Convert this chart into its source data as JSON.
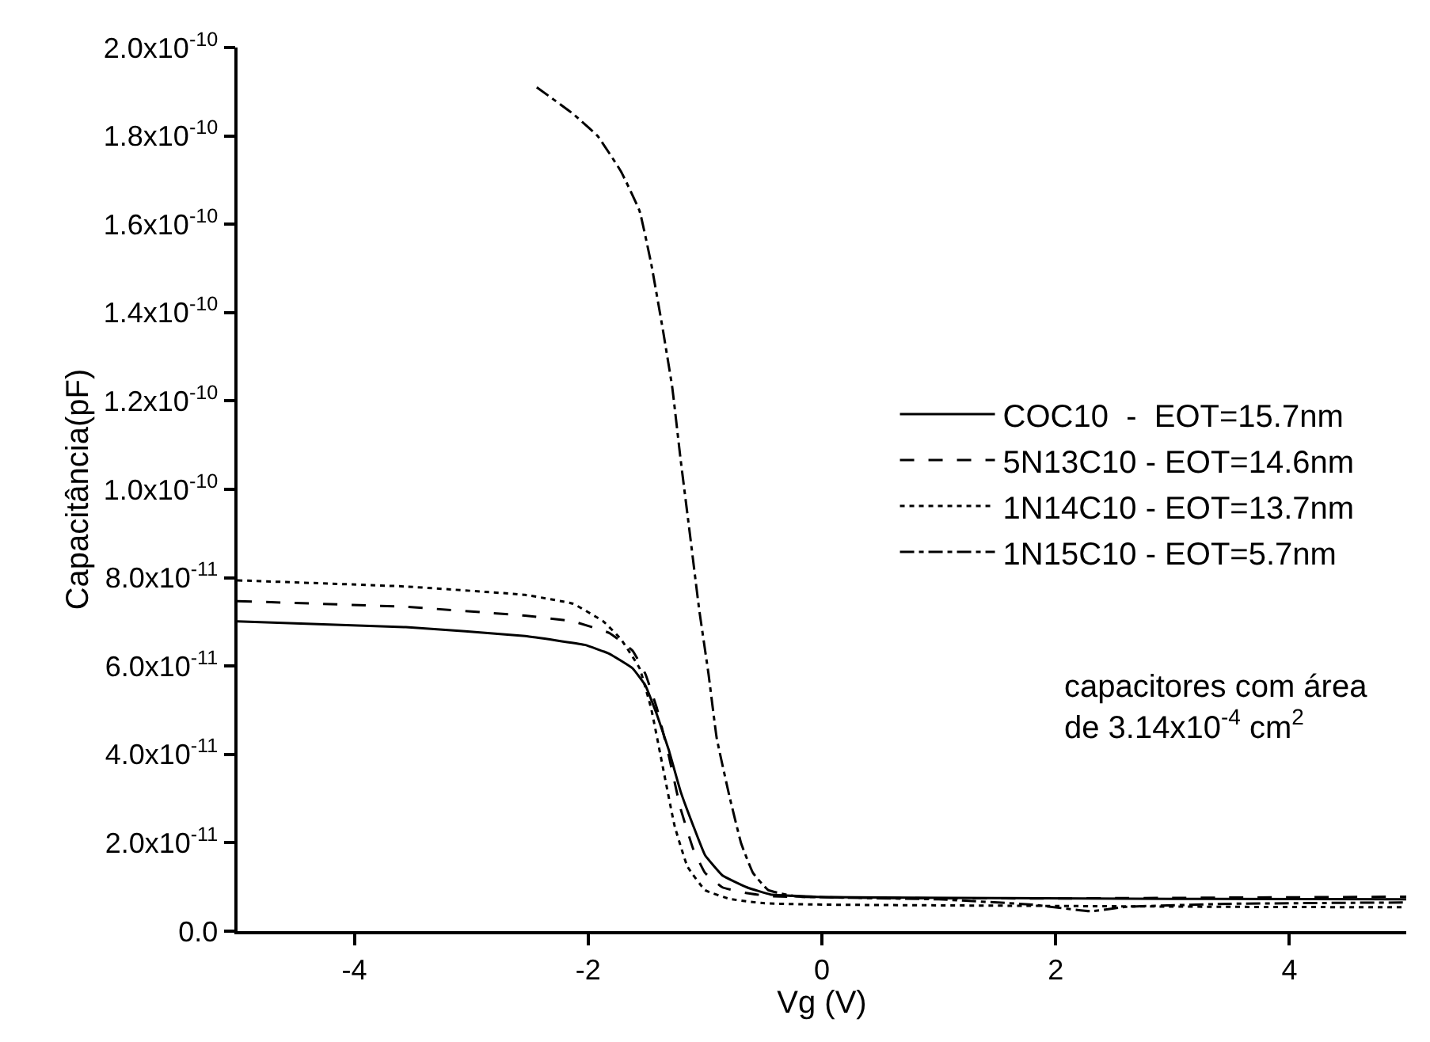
{
  "chart_data": {
    "type": "line",
    "xlabel": "Vg (V)",
    "ylabel": "Capacitância(pF)",
    "xlim": [
      -5,
      5
    ],
    "xticks": [
      -4,
      -2,
      0,
      2,
      4
    ],
    "ylim": [
      0,
      2e-10
    ],
    "yticks": [
      {
        "value": 0,
        "label": "0.0"
      },
      {
        "value": 2e-11,
        "label": "2.0x10$^{-11}$"
      },
      {
        "value": 4e-11,
        "label": "4.0x10$^{-11}$"
      },
      {
        "value": 6e-11,
        "label": "6.0x10$^{-11}$"
      },
      {
        "value": 8e-11,
        "label": "8.0x10$^{-11}$"
      },
      {
        "value": 1e-10,
        "label": "1.0x10$^{-10}$"
      },
      {
        "value": 1.2e-10,
        "label": "1.2x10$^{-10}$"
      },
      {
        "value": 1.4e-10,
        "label": "1.4x10$^{-10}$"
      },
      {
        "value": 1.6e-10,
        "label": "1.6x10$^{-10}$"
      },
      {
        "value": 1.8e-10,
        "label": "1.8x10$^{-10}$"
      },
      {
        "value": 2e-10,
        "label": "2.0x10$^{-10}$"
      }
    ],
    "legend": "right",
    "marker": "none",
    "annotations": [
      "capacitores com área\nde 3.14x10$^{-4}$ cm$^{2}$"
    ],
    "series": [
      {
        "name": "COC10  -  EOT=15.7nm",
        "color": "#000000",
        "line_style": "solid",
        "x": [
          -5,
          -3.56,
          -2.54,
          -2.03,
          -1.82,
          -1.62,
          -1.51,
          -1.41,
          -1.31,
          -1.21,
          -1.1,
          -1.0,
          -0.85,
          -0.64,
          -0.44,
          0.03,
          1.5,
          3,
          5
        ],
        "values": [
          7.01e-11,
          6.88e-11,
          6.68e-11,
          6.48e-11,
          6.28e-11,
          5.95e-11,
          5.56e-11,
          4.89e-11,
          4.1e-11,
          3.17e-11,
          2.38e-11,
          1.72e-11,
          1.26e-11,
          9.9e-12,
          8.3e-12,
          7.7e-12,
          7.5e-12,
          7.3e-12,
          7.2e-12
        ]
      },
      {
        "name": "5N13C10 - EOT=14.6nm",
        "color": "#000000",
        "line_style": "dashed",
        "x": [
          -5,
          -3.56,
          -2.54,
          -2.13,
          -1.82,
          -1.62,
          -1.51,
          -1.41,
          -1.31,
          -1.21,
          -1.1,
          -1.0,
          -0.85,
          -0.64,
          -0.44,
          0.5,
          2,
          3.5,
          5
        ],
        "values": [
          7.47e-11,
          7.34e-11,
          7.14e-11,
          7.01e-11,
          6.75e-11,
          6.35e-11,
          5.82e-11,
          5.03e-11,
          3.97e-11,
          2.78e-11,
          1.85e-11,
          1.32e-11,
          9.9e-12,
          8.6e-12,
          7.9e-12,
          7.5e-12,
          7.4e-12,
          7.6e-12,
          7.8e-12
        ]
      },
      {
        "name": "1N14C10 - EOT=13.7nm",
        "color": "#000000",
        "line_style": "dotted",
        "x": [
          -5,
          -3.56,
          -2.54,
          -2.13,
          -1.87,
          -1.72,
          -1.56,
          -1.46,
          -1.36,
          -1.26,
          -1.15,
          -1.0,
          -0.79,
          -0.49,
          0.03,
          2,
          3.5,
          5
        ],
        "values": [
          7.94e-11,
          7.8e-11,
          7.61e-11,
          7.41e-11,
          7.01e-11,
          6.61e-11,
          5.95e-11,
          5.03e-11,
          3.7e-11,
          2.38e-11,
          1.46e-11,
          9.3e-12,
          7.3e-12,
          6.3e-12,
          6e-12,
          5.7e-12,
          5.5e-12,
          5.4e-12
        ]
      },
      {
        "name": "1N15C10 - EOT=5.7nm",
        "color": "#000000",
        "line_style": "dashdot",
        "x": [
          -2.44,
          -2.13,
          -1.92,
          -1.72,
          -1.56,
          -1.46,
          -1.36,
          -1.28,
          -1.21,
          -1.13,
          -1.05,
          -0.97,
          -0.9,
          -0.79,
          -0.69,
          -0.59,
          -0.46,
          -0.23,
          1.0,
          1.8,
          2.3,
          2.6,
          3.5,
          5
        ],
        "values": [
          1.91e-10,
          1.85e-10,
          1.8e-10,
          1.72e-10,
          1.63e-10,
          1.51e-10,
          1.36e-10,
          1.23e-10,
          1.07e-10,
          9e-11,
          7.28e-11,
          5.82e-11,
          4.37e-11,
          3.04e-11,
          1.98e-11,
          1.32e-11,
          9.3e-12,
          7.9e-12,
          7.2e-12,
          6e-12,
          4.5e-12,
          5.5e-12,
          6.2e-12,
          6.5e-12
        ]
      }
    ]
  }
}
